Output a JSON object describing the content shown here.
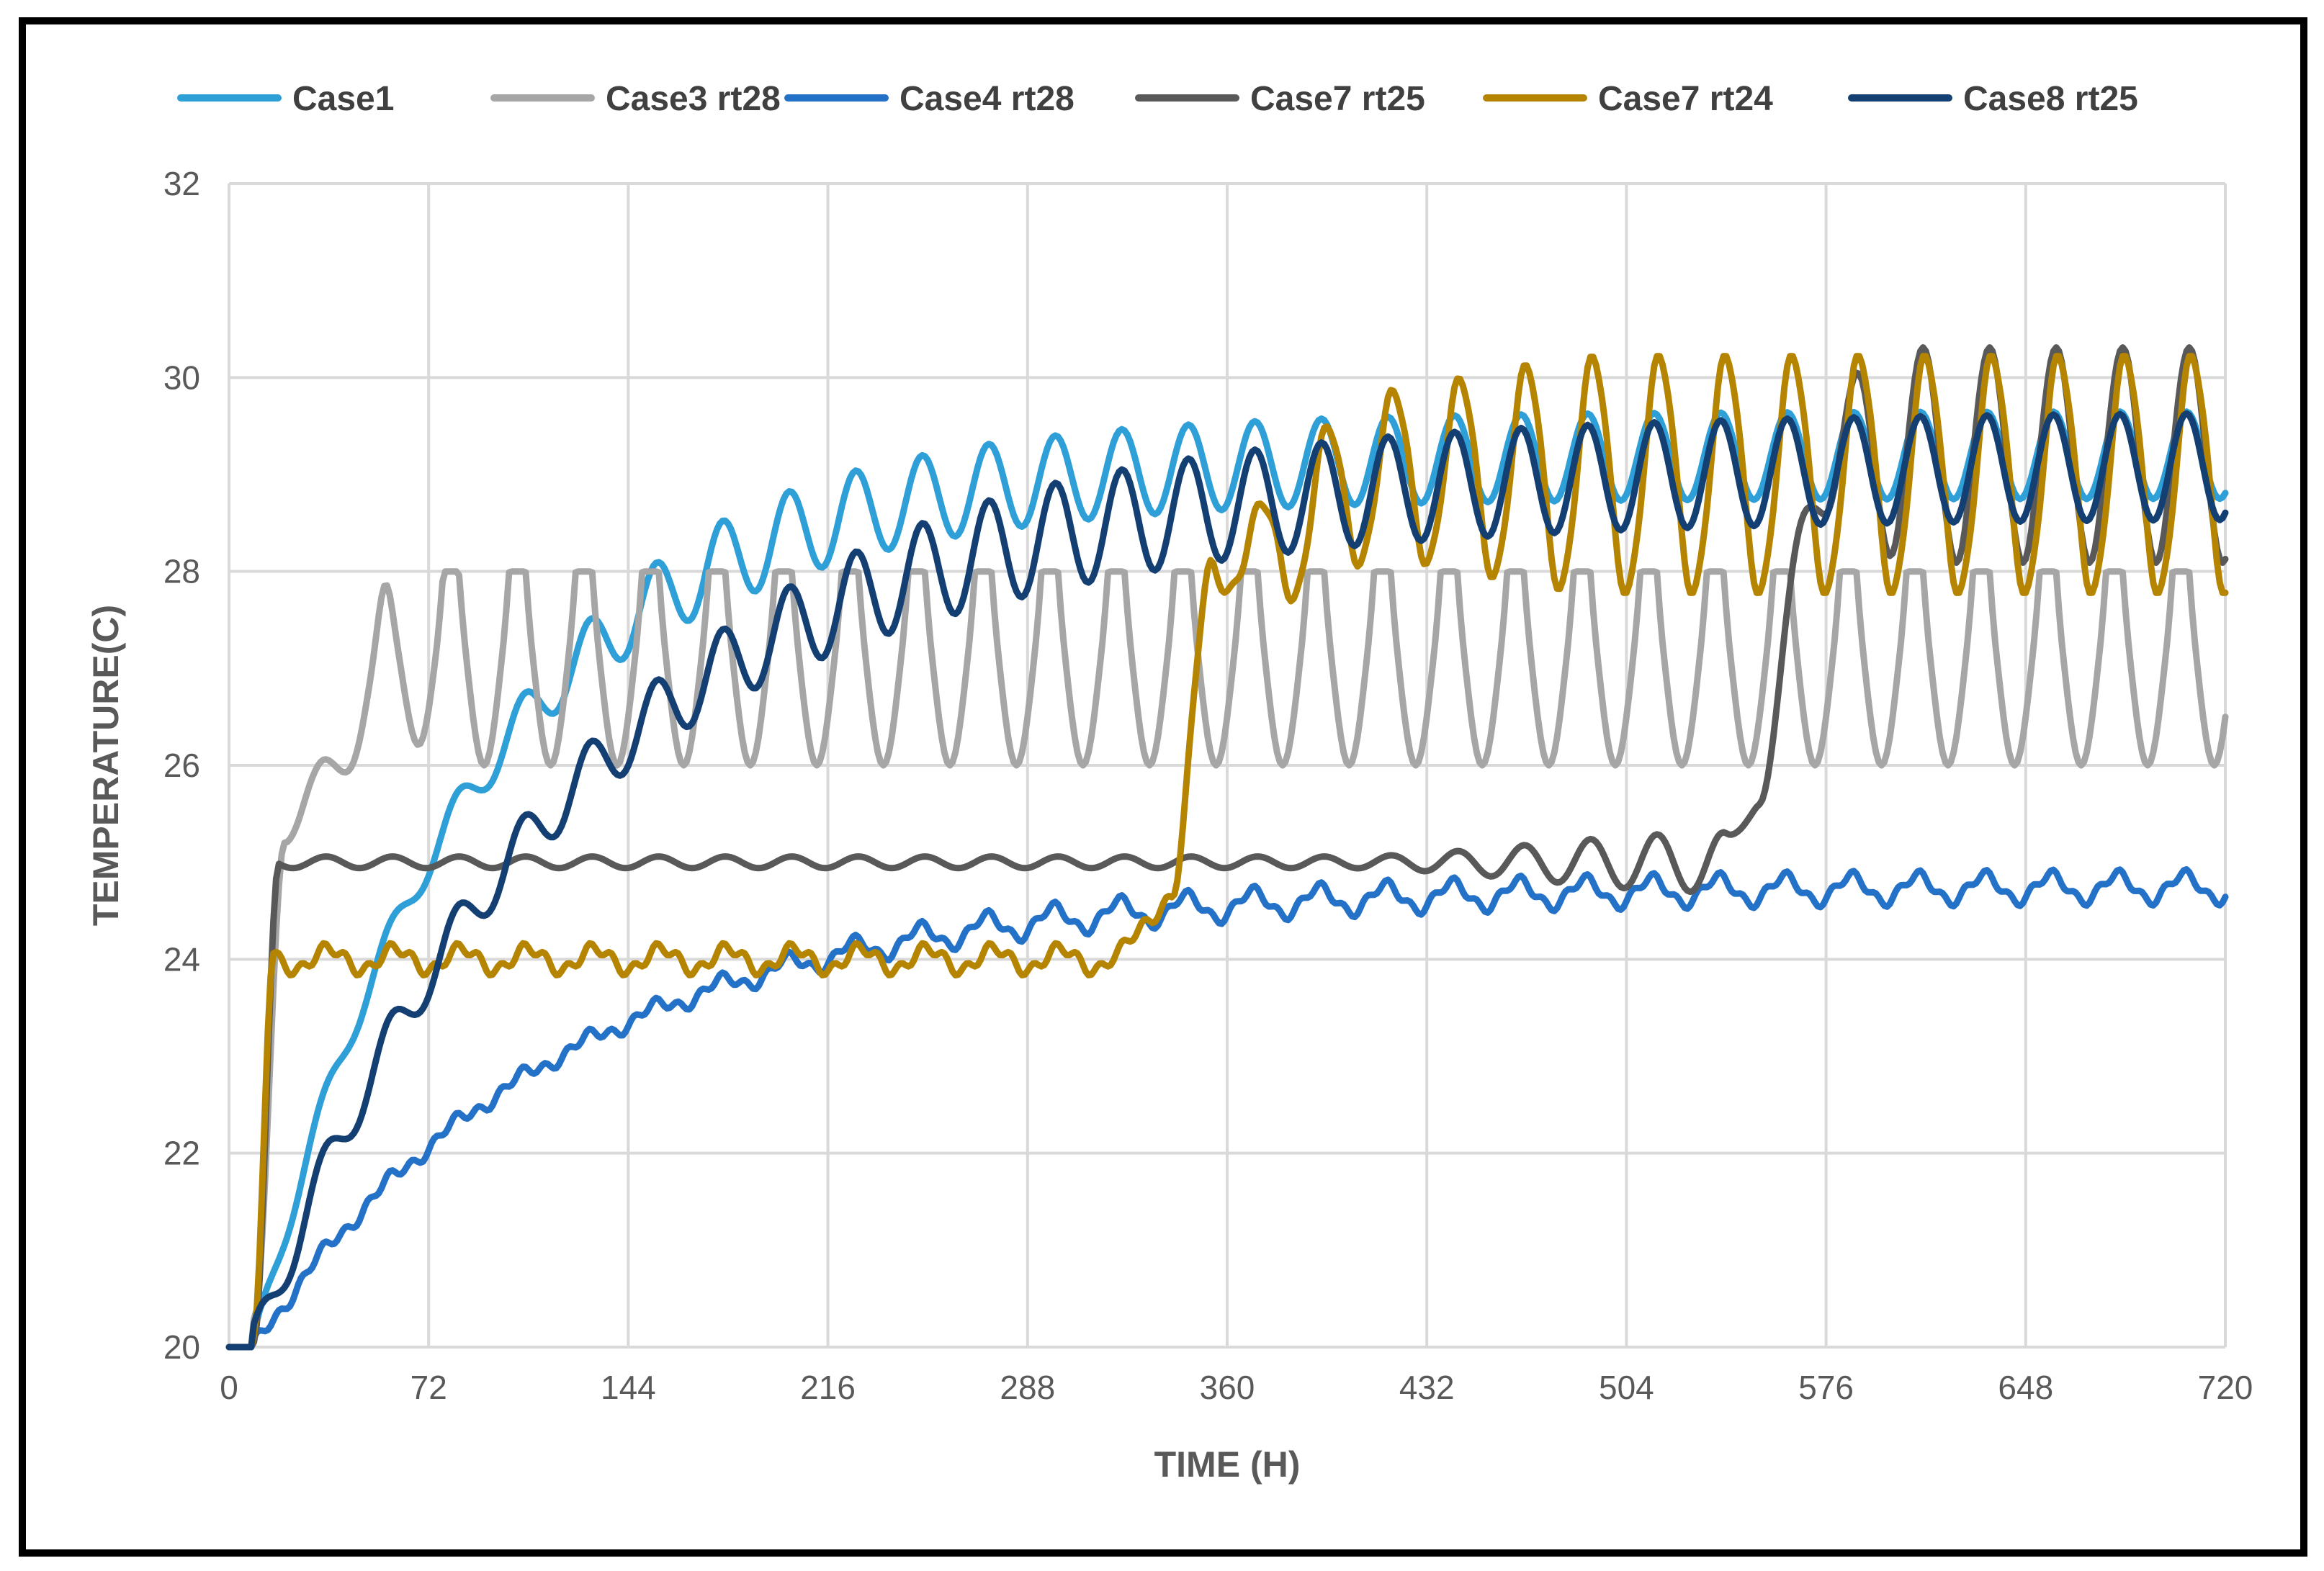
{
  "chart_data": {
    "type": "line",
    "title": "",
    "xlabel": "TIME (H)",
    "ylabel": "TEMPERATURE(C)",
    "xlim": [
      0,
      720
    ],
    "ylim": [
      20,
      32
    ],
    "xticks": [
      0,
      72,
      144,
      216,
      288,
      360,
      432,
      504,
      576,
      648,
      720
    ],
    "yticks": [
      20,
      22,
      24,
      26,
      28,
      30,
      32
    ],
    "grid": true,
    "legend_position": "top",
    "series": [
      {
        "name": "Case1",
        "color": "#2f9fd8"
      },
      {
        "name": "Case3 rt28",
        "color": "#a6a6a6"
      },
      {
        "name": "Case4 rt28",
        "color": "#2471c8"
      },
      {
        "name": "Case7 rt25",
        "color": "#595959"
      },
      {
        "name": "Case7 rt24",
        "color": "#b58400"
      },
      {
        "name": "Case8 rt25",
        "color": "#133f73"
      }
    ]
  }
}
